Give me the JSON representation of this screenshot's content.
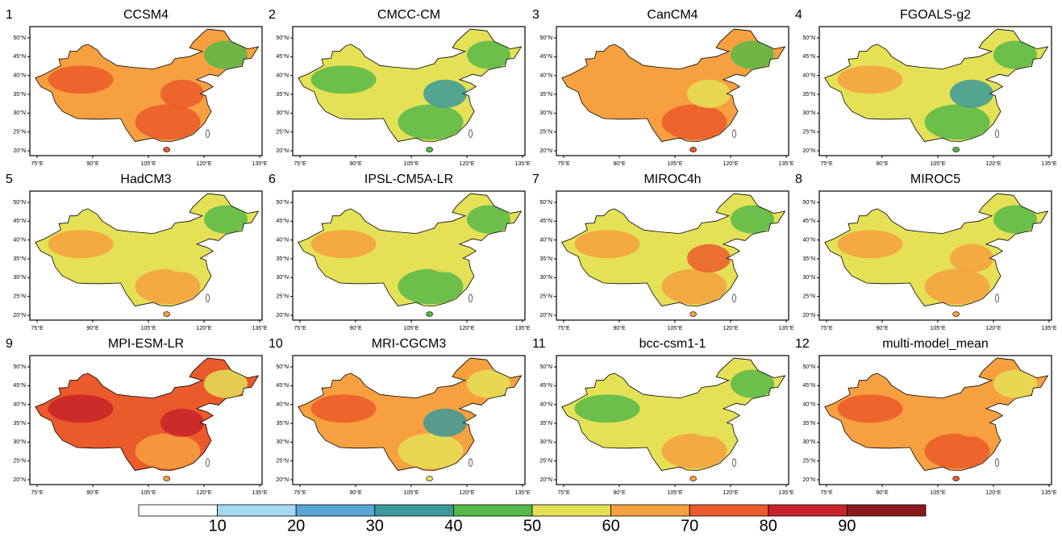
{
  "panels": [
    {
      "number": "1",
      "title": "CCSM4",
      "colors": [
        "#f7a040",
        "#eb5a2a",
        "#eb5a2a",
        "#56b848",
        "#eb5a2a"
      ]
    },
    {
      "number": "2",
      "title": "CMCC-CM",
      "colors": [
        "#e4e157",
        "#56b848",
        "#56b848",
        "#56b848",
        "#3a9a9a"
      ]
    },
    {
      "number": "3",
      "title": "CanCM4",
      "colors": [
        "#f7a040",
        "#eb5a2a",
        "#f7a040",
        "#56b848",
        "#e4e157"
      ]
    },
    {
      "number": "4",
      "title": "FGOALS-g2",
      "colors": [
        "#e4e157",
        "#56b848",
        "#f7a040",
        "#56b848",
        "#3a9a9a"
      ]
    },
    {
      "number": "5",
      "title": "HadCM3",
      "colors": [
        "#e4e157",
        "#f7a040",
        "#f7a040",
        "#56b848",
        "#e4e157"
      ]
    },
    {
      "number": "6",
      "title": "IPSL-CM5A-LR",
      "colors": [
        "#e4e157",
        "#56b848",
        "#f7a040",
        "#56b848",
        "#e4e157"
      ]
    },
    {
      "number": "7",
      "title": "MIROC4h",
      "colors": [
        "#e4e157",
        "#f7a040",
        "#f7a040",
        "#56b848",
        "#eb5a2a"
      ]
    },
    {
      "number": "8",
      "title": "MIROC5",
      "colors": [
        "#e4e157",
        "#f7a040",
        "#f7a040",
        "#56b848",
        "#f7a040"
      ]
    },
    {
      "number": "9",
      "title": "MPI-ESM-LR",
      "colors": [
        "#eb5a2a",
        "#f7a040",
        "#c8232a",
        "#e4e157",
        "#c8232a"
      ]
    },
    {
      "number": "10",
      "title": "MRI-CGCM3",
      "colors": [
        "#f7a040",
        "#e4e157",
        "#eb5a2a",
        "#e4e157",
        "#3a9a9a"
      ]
    },
    {
      "number": "11",
      "title": "bcc-csm1-1",
      "colors": [
        "#e4e157",
        "#f7a040",
        "#56b848",
        "#56b848",
        "#e4e157"
      ]
    },
    {
      "number": "12",
      "title": "multi-model_mean",
      "colors": [
        "#f7a040",
        "#eb5a2a",
        "#eb5a2a",
        "#e4e157",
        "#f7a040"
      ]
    }
  ],
  "lon_ticks": [
    "75°E",
    "90°E",
    "105°E",
    "120°E",
    "135°E"
  ],
  "lat_ticks": [
    "20°N",
    "25°N",
    "30°N",
    "35°N",
    "40°N",
    "45°N",
    "50°N"
  ],
  "colorbar": {
    "ticks": [
      10,
      20,
      30,
      40,
      50,
      60,
      70,
      80,
      90
    ],
    "colors": [
      "#ffffff",
      "#a6d8f0",
      "#5aa6d6",
      "#3a9a9a",
      "#56b848",
      "#e4e157",
      "#f7a040",
      "#eb5a2a",
      "#c8232a",
      "#8b1a1a"
    ]
  }
}
